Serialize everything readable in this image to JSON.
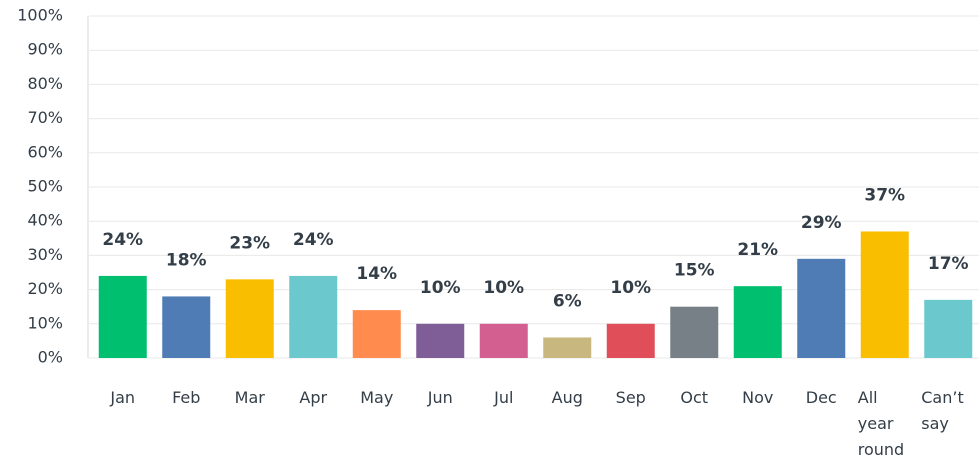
{
  "chart_data": {
    "type": "bar",
    "categories": [
      "Jan",
      "Feb",
      "Mar",
      "Apr",
      "May",
      "Jun",
      "Jul",
      "Aug",
      "Sep",
      "Oct",
      "Nov",
      "Dec",
      "All year round",
      "Can’t say"
    ],
    "values": [
      24,
      18,
      23,
      24,
      14,
      10,
      10,
      6,
      10,
      15,
      21,
      29,
      37,
      17
    ],
    "value_labels": [
      "24%",
      "18%",
      "23%",
      "24%",
      "14%",
      "10%",
      "10%",
      "6%",
      "10%",
      "15%",
      "21%",
      "29%",
      "37%",
      "17%"
    ],
    "colors": [
      "#00bf6f",
      "#507cb6",
      "#f9be00",
      "#6bc8cd",
      "#ff8b4f",
      "#7f5d96",
      "#d25f90",
      "#c8b77e",
      "#e04e5a",
      "#768086",
      "#00bf6f",
      "#507cb6",
      "#f9be00",
      "#6bc8cd"
    ],
    "ylim": [
      0,
      100
    ],
    "yticks": [
      {
        "value": 0,
        "label": "0%"
      },
      {
        "value": 10,
        "label": "10%"
      },
      {
        "value": 20,
        "label": "20%"
      },
      {
        "value": 30,
        "label": "30%"
      },
      {
        "value": 40,
        "label": "40%"
      },
      {
        "value": 50,
        "label": "50%"
      },
      {
        "value": 60,
        "label": "60%"
      },
      {
        "value": 70,
        "label": "70%"
      },
      {
        "value": 80,
        "label": "80%"
      },
      {
        "value": 90,
        "label": "90%"
      },
      {
        "value": 100,
        "label": "100%"
      }
    ],
    "grid": true
  }
}
